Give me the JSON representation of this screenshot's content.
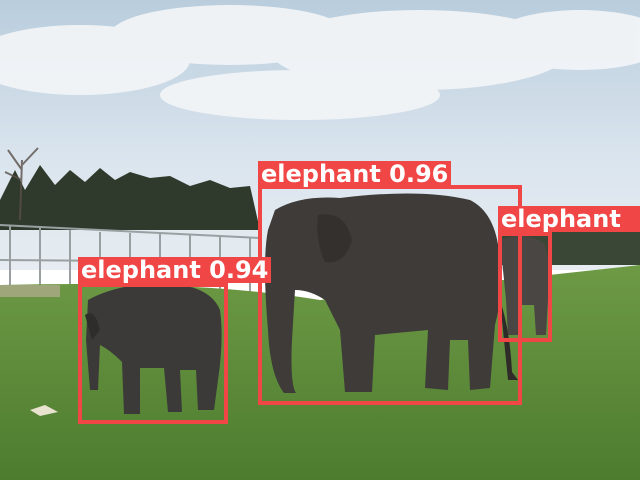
{
  "detections": [
    {
      "label": "elephant",
      "score": "0.96",
      "text": "elephant 0.96"
    },
    {
      "label": "elephant",
      "score": "0.94",
      "text": "elephant 0.94"
    },
    {
      "label": "elephant",
      "score": "",
      "text": "elephant"
    }
  ],
  "colors": {
    "box": "#f04646",
    "label_text": "#ffffff",
    "sky": "#d7e2ec",
    "grass": "#5b8a3a",
    "elephant": "#3e3b39"
  }
}
